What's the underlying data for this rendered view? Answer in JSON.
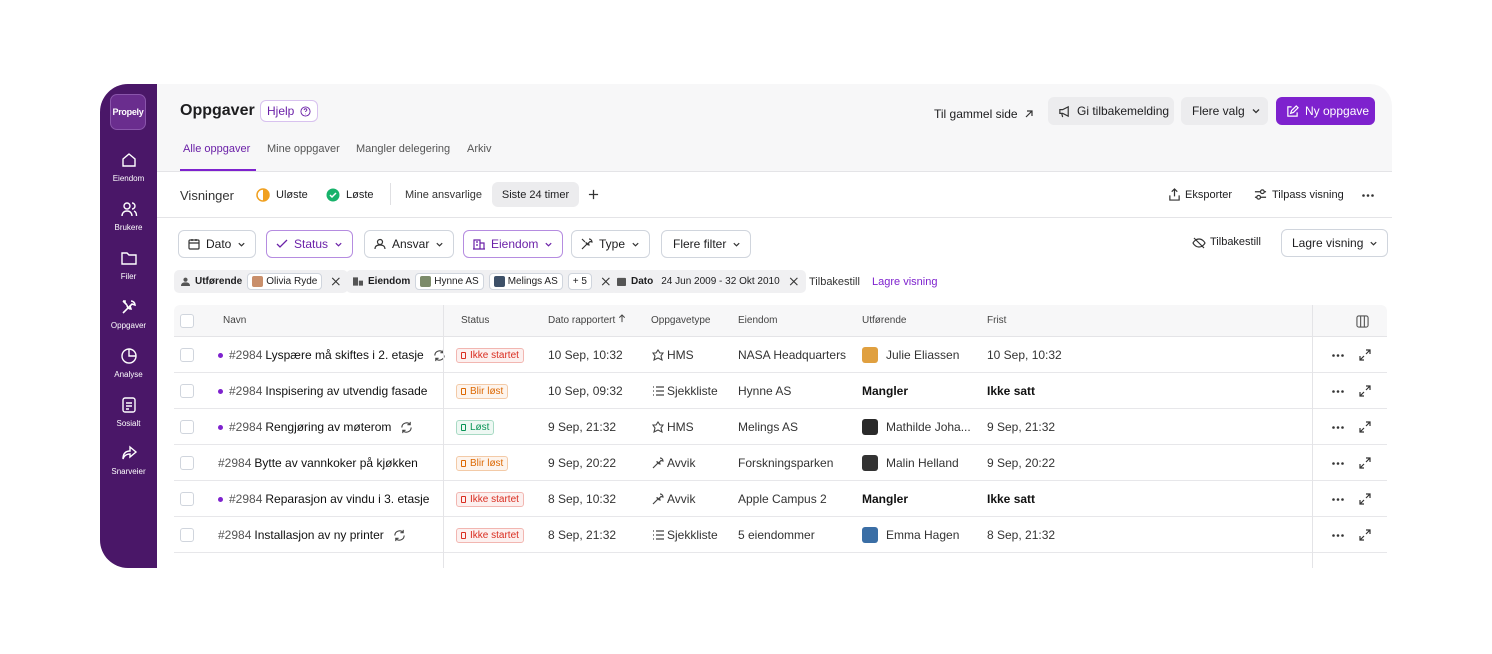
{
  "sidebar": {
    "logo": "Propely",
    "items": [
      "Eiendom",
      "Brukere",
      "Filer",
      "Oppgaver",
      "Analyse",
      "Sosialt",
      "Snarveier"
    ]
  },
  "header": {
    "title": "Oppgaver",
    "help": "Hjelp",
    "actions": [
      "Til gammel side",
      "Gi tilbakemelding",
      "Flere valg",
      "Ny oppgave"
    ]
  },
  "tabs": [
    "Alle oppgaver",
    "Mine oppgaver",
    "Mangler delegering",
    "Arkiv"
  ],
  "views": {
    "label": "Visninger",
    "items": [
      "Uløste",
      "Løste",
      "Mine ansvarlige",
      "Siste 24 timer"
    ],
    "actions": [
      "Eksporter",
      "Tilpass visning"
    ]
  },
  "filters": {
    "items": [
      "Dato",
      "Status",
      "Ansvar",
      "Eiendom",
      "Type",
      "Flere filter"
    ],
    "reset": "Tilbakestill",
    "save": "Lagre visning"
  },
  "active_filters": {
    "chips": [
      {
        "label": "Utførende",
        "values": [
          "Olivia Ryde"
        ]
      },
      {
        "label": "Eiendom",
        "values": [
          "Hynne AS",
          "Melings AS",
          "+ 5"
        ]
      },
      {
        "label": "Dato",
        "values": [
          "24 Jun 2009 - 32 Okt 2010"
        ]
      }
    ],
    "reset": "Tilbakestill",
    "save": "Lagre visning"
  },
  "table": {
    "columns": [
      "Navn",
      "Status",
      "Dato rapportert",
      "Oppgavetype",
      "Eiendom",
      "Utførende",
      "Frist"
    ],
    "rows": [
      {
        "id": "#2984",
        "name": "Lyspære må skiftes i 2. etasje",
        "unread": true,
        "recurring": true,
        "status": "Ikke startet",
        "status_color": "#d92d20",
        "reported": "10 Sep, 10:32",
        "type": "HMS",
        "property": "NASA Headquarters",
        "assignee": "Julie Eliassen",
        "avatar": "#e0a040",
        "due": "10 Sep, 10:32",
        "unassigned": false
      },
      {
        "id": "#2984",
        "name": "Inspisering av utvendig fasade",
        "unread": true,
        "recurring": false,
        "status": "Blir løst",
        "status_color": "#dc6803",
        "reported": "10 Sep, 09:32",
        "type": "Sjekkliste",
        "property": "Hynne AS",
        "assignee": "Mangler",
        "due": "Ikke satt",
        "unassigned": true
      },
      {
        "id": "#2984",
        "name": "Rengjøring av møterom",
        "unread": true,
        "recurring": true,
        "status": "Løst",
        "status_color": "#079455",
        "reported": "9 Sep, 21:32",
        "type": "HMS",
        "property": "Melings AS",
        "assignee": "Mathilde Joha...",
        "avatar": "#2a2a2a",
        "due": "9 Sep, 21:32",
        "unassigned": false
      },
      {
        "id": "#2984",
        "name": "Bytte av vannkoker på kjøkken",
        "unread": false,
        "recurring": false,
        "status": "Blir løst",
        "status_color": "#dc6803",
        "reported": "9 Sep, 20:22",
        "type": "Avvik",
        "property": "Forskningsparken",
        "assignee": "Malin Helland",
        "avatar": "#333333",
        "due": "9 Sep, 20:22",
        "unassigned": false
      },
      {
        "id": "#2984",
        "name": "Reparasjon av vindu i 3. etasje",
        "unread": true,
        "recurring": false,
        "status": "Ikke startet",
        "status_color": "#d92d20",
        "reported": "8 Sep, 10:32",
        "type": "Avvik",
        "property": "Apple Campus 2",
        "assignee": "Mangler",
        "due": "Ikke satt",
        "unassigned": true
      },
      {
        "id": "#2984",
        "name": "Installasjon av ny printer",
        "unread": false,
        "recurring": true,
        "status": "Ikke startet",
        "status_color": "#d92d20",
        "reported": "8 Sep, 21:32",
        "type": "Sjekkliste",
        "property": "5 eiendommer",
        "assignee": "Emma Hagen",
        "avatar": "#3a6ea5",
        "due": "8 Sep, 21:32",
        "unassigned": false
      }
    ]
  }
}
